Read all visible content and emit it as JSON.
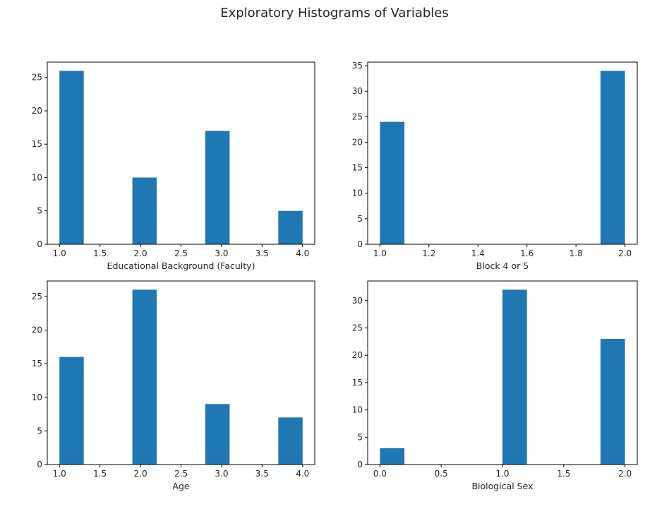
{
  "figure_title": "Exploratory Histograms of Variables",
  "colors": {
    "bar": "#1f77b4",
    "axes": "#000000",
    "text": "#262626",
    "background": "#ffffff"
  },
  "chart_data": [
    {
      "type": "bar",
      "xlabel": "Educational Background (Faculty)",
      "ylabel": "",
      "xlim": [
        0.85,
        4.15
      ],
      "ylim": [
        0,
        27.3
      ],
      "xticks": [
        1.0,
        1.5,
        2.0,
        2.5,
        3.0,
        3.5,
        4.0
      ],
      "xtick_labels": [
        "1.0",
        "1.5",
        "2.0",
        "2.5",
        "3.0",
        "3.5",
        "4.0"
      ],
      "yticks": [
        0,
        5,
        10,
        15,
        20,
        25
      ],
      "ytick_labels": [
        "0",
        "5",
        "10",
        "15",
        "20",
        "25"
      ],
      "bins": [
        {
          "x0": 1.0,
          "x1": 1.3,
          "count": 26
        },
        {
          "x0": 1.3,
          "x1": 1.6,
          "count": 0
        },
        {
          "x0": 1.6,
          "x1": 1.9,
          "count": 0
        },
        {
          "x0": 1.9,
          "x1": 2.2,
          "count": 10
        },
        {
          "x0": 2.2,
          "x1": 2.5,
          "count": 0
        },
        {
          "x0": 2.5,
          "x1": 2.8,
          "count": 0
        },
        {
          "x0": 2.8,
          "x1": 3.1,
          "count": 17
        },
        {
          "x0": 3.1,
          "x1": 3.4,
          "count": 0
        },
        {
          "x0": 3.4,
          "x1": 3.7,
          "count": 0
        },
        {
          "x0": 3.7,
          "x1": 4.0,
          "count": 5
        }
      ]
    },
    {
      "type": "bar",
      "xlabel": "Block 4 or 5",
      "ylabel": "",
      "xlim": [
        0.95,
        2.05
      ],
      "ylim": [
        0,
        35.7
      ],
      "xticks": [
        1.0,
        1.2,
        1.4,
        1.6,
        1.8,
        2.0
      ],
      "xtick_labels": [
        "1.0",
        "1.2",
        "1.4",
        "1.6",
        "1.8",
        "2.0"
      ],
      "yticks": [
        0,
        5,
        10,
        15,
        20,
        25,
        30,
        35
      ],
      "ytick_labels": [
        "0",
        "5",
        "10",
        "15",
        "20",
        "25",
        "30",
        "35"
      ],
      "bins": [
        {
          "x0": 1.0,
          "x1": 1.1,
          "count": 24
        },
        {
          "x0": 1.1,
          "x1": 1.2,
          "count": 0
        },
        {
          "x0": 1.2,
          "x1": 1.3,
          "count": 0
        },
        {
          "x0": 1.3,
          "x1": 1.4,
          "count": 0
        },
        {
          "x0": 1.4,
          "x1": 1.5,
          "count": 0
        },
        {
          "x0": 1.5,
          "x1": 1.6,
          "count": 0
        },
        {
          "x0": 1.6,
          "x1": 1.7,
          "count": 0
        },
        {
          "x0": 1.7,
          "x1": 1.8,
          "count": 0
        },
        {
          "x0": 1.8,
          "x1": 1.9,
          "count": 0
        },
        {
          "x0": 1.9,
          "x1": 2.0,
          "count": 34
        }
      ]
    },
    {
      "type": "bar",
      "xlabel": "Age",
      "ylabel": "",
      "xlim": [
        0.85,
        4.15
      ],
      "ylim": [
        0,
        27.3
      ],
      "xticks": [
        1.0,
        1.5,
        2.0,
        2.5,
        3.0,
        3.5,
        4.0
      ],
      "xtick_labels": [
        "1.0",
        "1.5",
        "2.0",
        "2.5",
        "3.0",
        "3.5",
        "4.0"
      ],
      "yticks": [
        0,
        5,
        10,
        15,
        20,
        25
      ],
      "ytick_labels": [
        "0",
        "5",
        "10",
        "15",
        "20",
        "25"
      ],
      "bins": [
        {
          "x0": 1.0,
          "x1": 1.3,
          "count": 16
        },
        {
          "x0": 1.3,
          "x1": 1.6,
          "count": 0
        },
        {
          "x0": 1.6,
          "x1": 1.9,
          "count": 0
        },
        {
          "x0": 1.9,
          "x1": 2.2,
          "count": 26
        },
        {
          "x0": 2.2,
          "x1": 2.5,
          "count": 0
        },
        {
          "x0": 2.5,
          "x1": 2.8,
          "count": 0
        },
        {
          "x0": 2.8,
          "x1": 3.1,
          "count": 9
        },
        {
          "x0": 3.1,
          "x1": 3.4,
          "count": 0
        },
        {
          "x0": 3.4,
          "x1": 3.7,
          "count": 0
        },
        {
          "x0": 3.7,
          "x1": 4.0,
          "count": 7
        }
      ]
    },
    {
      "type": "bar",
      "xlabel": "Biological Sex",
      "ylabel": "",
      "xlim": [
        -0.1,
        2.1
      ],
      "ylim": [
        0,
        33.6
      ],
      "xticks": [
        0.0,
        0.5,
        1.0,
        1.5,
        2.0
      ],
      "xtick_labels": [
        "0.0",
        "0.5",
        "1.0",
        "1.5",
        "2.0"
      ],
      "yticks": [
        0,
        5,
        10,
        15,
        20,
        25,
        30
      ],
      "ytick_labels": [
        "0",
        "5",
        "10",
        "15",
        "20",
        "25",
        "30"
      ],
      "bins": [
        {
          "x0": 0.0,
          "x1": 0.2,
          "count": 3
        },
        {
          "x0": 0.2,
          "x1": 0.4,
          "count": 0
        },
        {
          "x0": 0.4,
          "x1": 0.6,
          "count": 0
        },
        {
          "x0": 0.6,
          "x1": 0.8,
          "count": 0
        },
        {
          "x0": 0.8,
          "x1": 1.0,
          "count": 0
        },
        {
          "x0": 1.0,
          "x1": 1.2,
          "count": 32
        },
        {
          "x0": 1.2,
          "x1": 1.4,
          "count": 0
        },
        {
          "x0": 1.4,
          "x1": 1.6,
          "count": 0
        },
        {
          "x0": 1.6,
          "x1": 1.8,
          "count": 0
        },
        {
          "x0": 1.8,
          "x1": 2.0,
          "count": 23
        }
      ]
    }
  ]
}
